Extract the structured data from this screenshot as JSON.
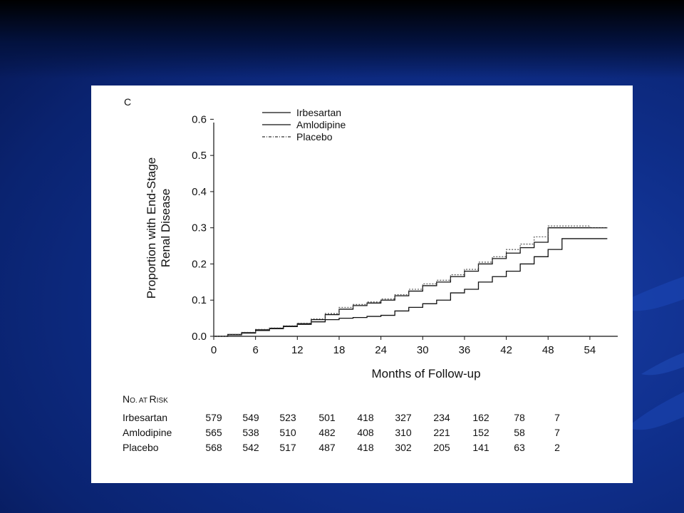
{
  "chart_data": {
    "type": "line",
    "panel_label": "C",
    "title": "",
    "xlabel": "Months of Follow-up",
    "ylabel_lines": [
      "Proportion with End-Stage",
      "Renal Disease"
    ],
    "xlim": [
      0,
      58
    ],
    "ylim": [
      0,
      0.65
    ],
    "xticks": [
      0,
      6,
      12,
      18,
      24,
      30,
      36,
      42,
      48,
      54
    ],
    "yticks": [
      "0.0",
      "0.1",
      "0.2",
      "0.3",
      "0.4",
      "0.5",
      "0.6"
    ],
    "legend_position": "top-center",
    "grid": false,
    "series": [
      {
        "name": "Irbesartan",
        "style": "solid",
        "x": [
          0,
          2,
          4,
          6,
          8,
          10,
          12,
          14,
          16,
          18,
          20,
          22,
          24,
          26,
          28,
          30,
          32,
          34,
          36,
          38,
          40,
          42,
          44,
          46,
          48,
          50,
          52,
          54,
          56.5
        ],
        "y": [
          0,
          0.004,
          0.009,
          0.016,
          0.021,
          0.027,
          0.033,
          0.04,
          0.046,
          0.05,
          0.052,
          0.055,
          0.058,
          0.07,
          0.08,
          0.09,
          0.1,
          0.12,
          0.13,
          0.15,
          0.165,
          0.18,
          0.2,
          0.22,
          0.24,
          0.27,
          0.27,
          0.27,
          0.27
        ]
      },
      {
        "name": "Amlodipine",
        "style": "solid",
        "x": [
          0,
          2,
          4,
          6,
          8,
          10,
          12,
          14,
          16,
          18,
          20,
          22,
          24,
          26,
          28,
          30,
          32,
          34,
          36,
          38,
          40,
          42,
          44,
          46,
          48,
          50,
          52,
          54,
          56.5
        ],
        "y": [
          0,
          0.005,
          0.01,
          0.018,
          0.022,
          0.028,
          0.035,
          0.046,
          0.06,
          0.075,
          0.085,
          0.092,
          0.1,
          0.112,
          0.125,
          0.14,
          0.15,
          0.165,
          0.18,
          0.2,
          0.215,
          0.23,
          0.245,
          0.26,
          0.3,
          0.3,
          0.3,
          0.3,
          0.3
        ]
      },
      {
        "name": "Placebo",
        "style": "dotted",
        "x": [
          0,
          2,
          4,
          6,
          8,
          10,
          12,
          14,
          16,
          18,
          20,
          22,
          24,
          26,
          28,
          30,
          32,
          34,
          36,
          38,
          40,
          42,
          44,
          46,
          48,
          50,
          52,
          54,
          56.5
        ],
        "y": [
          0,
          0.005,
          0.011,
          0.019,
          0.023,
          0.029,
          0.036,
          0.048,
          0.063,
          0.08,
          0.088,
          0.095,
          0.103,
          0.115,
          0.13,
          0.145,
          0.155,
          0.17,
          0.185,
          0.205,
          0.22,
          0.24,
          0.255,
          0.275,
          0.305,
          0.305,
          0.305,
          0.3,
          0.3
        ]
      }
    ]
  },
  "risk_table": {
    "title_big_1": "N",
    "title_small_1": "O. AT ",
    "title_big_2": "R",
    "title_small_2": "ISK",
    "rows": [
      {
        "label": "Irbesartan",
        "values": [
          "579",
          "549",
          "523",
          "501",
          "418",
          "327",
          "234",
          "162",
          "78",
          "7"
        ]
      },
      {
        "label": "Amlodipine",
        "values": [
          "565",
          "538",
          "510",
          "482",
          "408",
          "310",
          "221",
          "152",
          "58",
          "7"
        ]
      },
      {
        "label": "Placebo",
        "values": [
          "568",
          "542",
          "517",
          "487",
          "418",
          "302",
          "205",
          "141",
          "63",
          "2"
        ]
      }
    ]
  }
}
